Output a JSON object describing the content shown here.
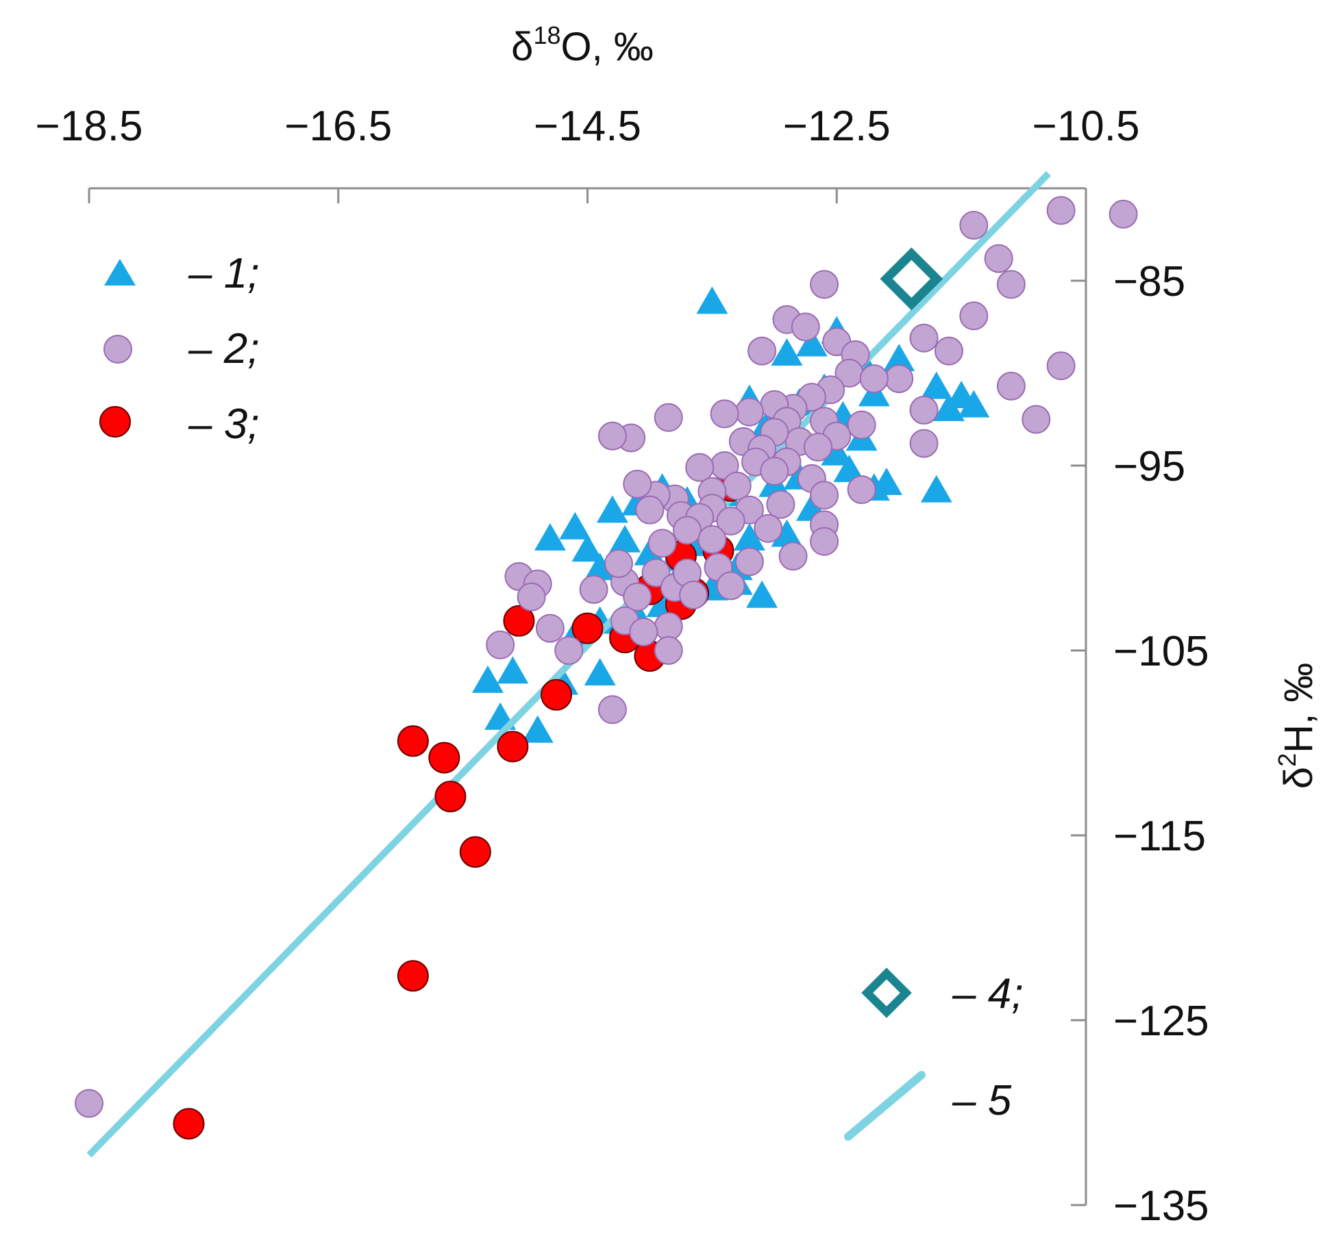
{
  "chart_data": {
    "type": "scatter",
    "xlabel_prefix": "δ",
    "xlabel_sup": "18",
    "xlabel_suffix": "O, ‰",
    "ylabel_prefix": "δ",
    "ylabel_sup": "2",
    "ylabel_suffix": "H, ‰",
    "xlim": [
      -18.5,
      -10.5
    ],
    "ylim": [
      -135,
      -80
    ],
    "x_ticks": [
      -18.5,
      -16.5,
      -14.5,
      -12.5,
      -10.5
    ],
    "x_tick_labels": [
      "−18.5",
      "−16.5",
      "−14.5",
      "−12.5",
      "−10.5"
    ],
    "y_ticks": [
      -85,
      -95,
      -105,
      -115,
      -125,
      -135
    ],
    "y_tick_labels": [
      "−85",
      "−95",
      "−105",
      "−115",
      "−125",
      "−135"
    ],
    "x_axis_position": "top",
    "y_axis_position": "right",
    "legend": [
      {
        "marker": "triangle",
        "label": "– 1;"
      },
      {
        "marker": "circle-purple",
        "label": "– 2;"
      },
      {
        "marker": "circle-red",
        "label": "– 3;"
      },
      {
        "marker": "diamond",
        "label": "– 4;"
      },
      {
        "marker": "line",
        "label": "– 5"
      }
    ],
    "colors": {
      "series1": "#1aa7e8",
      "series2": "#c2a5d2",
      "series2_edge": "#9b6bb3",
      "series3": "#ff0000",
      "series3_edge": "#6b0000",
      "series4": "#1a8590",
      "line": "#7ed3e2"
    },
    "series": [
      {
        "name": "1",
        "points": [
          [
            -13.5,
            -86.2
          ],
          [
            -12.5,
            -87.8
          ],
          [
            -12.7,
            -88.5
          ],
          [
            -12.3,
            -89.4
          ],
          [
            -12.0,
            -89.3
          ],
          [
            -12.9,
            -89.0
          ],
          [
            -11.7,
            -90.8
          ],
          [
            -11.5,
            -91.3
          ],
          [
            -11.4,
            -91.8
          ],
          [
            -12.2,
            -91.2
          ],
          [
            -12.6,
            -90.9
          ],
          [
            -13.2,
            -91.5
          ],
          [
            -13.0,
            -92.2
          ],
          [
            -12.8,
            -91.7
          ],
          [
            -12.45,
            -92.4
          ],
          [
            -13.1,
            -93.3
          ],
          [
            -12.3,
            -93.6
          ],
          [
            -12.85,
            -93.8
          ],
          [
            -12.5,
            -94.4
          ],
          [
            -12.1,
            -96.0
          ],
          [
            -11.7,
            -96.4
          ],
          [
            -12.4,
            -95.3
          ],
          [
            -12.8,
            -95.7
          ],
          [
            -13.0,
            -96.1
          ],
          [
            -13.4,
            -96.6
          ],
          [
            -13.7,
            -97.0
          ],
          [
            -13.9,
            -96.3
          ],
          [
            -14.1,
            -97.1
          ],
          [
            -14.3,
            -97.5
          ],
          [
            -14.6,
            -98.4
          ],
          [
            -14.5,
            -99.6
          ],
          [
            -14.2,
            -99.1
          ],
          [
            -14.0,
            -99.8
          ],
          [
            -13.6,
            -99.3
          ],
          [
            -13.2,
            -99.0
          ],
          [
            -12.9,
            -98.8
          ],
          [
            -14.8,
            -99.0
          ],
          [
            -14.4,
            -100.6
          ],
          [
            -13.8,
            -101.4
          ],
          [
            -13.5,
            -101.7
          ],
          [
            -13.1,
            -102.1
          ],
          [
            -13.3,
            -101.4
          ],
          [
            -13.9,
            -102.6
          ],
          [
            -14.1,
            -103.2
          ],
          [
            -14.4,
            -103.5
          ],
          [
            -14.2,
            -104.0
          ],
          [
            -14.6,
            -104.2
          ],
          [
            -15.1,
            -106.2
          ],
          [
            -15.3,
            -106.7
          ],
          [
            -14.7,
            -106.8
          ],
          [
            -14.4,
            -106.3
          ],
          [
            -15.2,
            -108.7
          ],
          [
            -14.9,
            -109.4
          ],
          [
            -12.2,
            -96.3
          ],
          [
            -11.6,
            -92.0
          ],
          [
            -13.8,
            -100.1
          ],
          [
            -13.3,
            -100.6
          ],
          [
            -12.7,
            -97.4
          ]
        ]
      },
      {
        "name": "2",
        "points": [
          [
            -10.7,
            -81.2
          ],
          [
            -10.2,
            -81.4
          ],
          [
            -11.4,
            -82.0
          ],
          [
            -11.2,
            -83.8
          ],
          [
            -11.1,
            -85.2
          ],
          [
            -12.6,
            -85.2
          ],
          [
            -11.4,
            -86.9
          ],
          [
            -12.9,
            -87.1
          ],
          [
            -12.75,
            -87.5
          ],
          [
            -13.1,
            -88.8
          ],
          [
            -12.5,
            -88.3
          ],
          [
            -12.35,
            -89.0
          ],
          [
            -11.8,
            -88.1
          ],
          [
            -11.6,
            -88.8
          ],
          [
            -10.7,
            -89.6
          ],
          [
            -12.0,
            -90.3
          ],
          [
            -12.4,
            -90.0
          ],
          [
            -12.55,
            -90.9
          ],
          [
            -12.2,
            -90.3
          ],
          [
            -11.1,
            -90.7
          ],
          [
            -12.7,
            -91.3
          ],
          [
            -12.85,
            -91.9
          ],
          [
            -13.0,
            -91.7
          ],
          [
            -13.2,
            -92.1
          ],
          [
            -12.9,
            -92.6
          ],
          [
            -13.4,
            -92.2
          ],
          [
            -12.6,
            -92.6
          ],
          [
            -11.8,
            -92.0
          ],
          [
            -10.9,
            -92.5
          ],
          [
            -12.5,
            -93.4
          ],
          [
            -12.8,
            -93.7
          ],
          [
            -13.0,
            -93.2
          ],
          [
            -13.25,
            -93.7
          ],
          [
            -12.3,
            -92.8
          ],
          [
            -13.1,
            -94.1
          ],
          [
            -12.65,
            -94.0
          ],
          [
            -12.9,
            -94.8
          ],
          [
            -13.15,
            -94.8
          ],
          [
            -13.4,
            -95.0
          ],
          [
            -13.6,
            -95.1
          ],
          [
            -12.7,
            -95.7
          ],
          [
            -13.0,
            -95.3
          ],
          [
            -13.3,
            -96.1
          ],
          [
            -13.5,
            -96.4
          ],
          [
            -13.8,
            -96.8
          ],
          [
            -13.95,
            -96.6
          ],
          [
            -14.0,
            -97.4
          ],
          [
            -13.75,
            -97.7
          ],
          [
            -13.5,
            -97.3
          ],
          [
            -13.2,
            -97.4
          ],
          [
            -12.95,
            -97.1
          ],
          [
            -12.6,
            -96.6
          ],
          [
            -12.3,
            -96.3
          ],
          [
            -11.8,
            -93.8
          ],
          [
            -14.15,
            -93.5
          ],
          [
            -14.3,
            -93.4
          ],
          [
            -13.85,
            -92.4
          ],
          [
            -14.1,
            -96.0
          ],
          [
            -13.6,
            -97.8
          ],
          [
            -13.35,
            -98.0
          ],
          [
            -13.05,
            -98.4
          ],
          [
            -12.6,
            -98.2
          ],
          [
            -13.7,
            -98.5
          ],
          [
            -13.9,
            -99.2
          ],
          [
            -13.5,
            -99.0
          ],
          [
            -12.6,
            -99.1
          ],
          [
            -12.85,
            -99.9
          ],
          [
            -13.2,
            -100.2
          ],
          [
            -13.45,
            -100.5
          ],
          [
            -13.95,
            -100.8
          ],
          [
            -14.2,
            -101.3
          ],
          [
            -14.25,
            -100.3
          ],
          [
            -13.8,
            -101.6
          ],
          [
            -13.7,
            -100.8
          ],
          [
            -13.65,
            -102.0
          ],
          [
            -13.35,
            -101.5
          ],
          [
            -14.45,
            -101.7
          ],
          [
            -14.1,
            -102.1
          ],
          [
            -15.05,
            -101.0
          ],
          [
            -14.9,
            -101.4
          ],
          [
            -14.95,
            -102.1
          ],
          [
            -14.2,
            -103.4
          ],
          [
            -13.85,
            -103.7
          ],
          [
            -14.05,
            -104.0
          ],
          [
            -14.8,
            -103.8
          ],
          [
            -15.2,
            -104.7
          ],
          [
            -14.65,
            -105.0
          ],
          [
            -13.85,
            -105.0
          ],
          [
            -14.3,
            -108.2
          ],
          [
            -18.5,
            -129.5
          ]
        ]
      },
      {
        "name": "3",
        "points": [
          [
            -17.7,
            -130.6
          ],
          [
            -15.9,
            -122.6
          ],
          [
            -15.4,
            -115.9
          ],
          [
            -15.6,
            -112.9
          ],
          [
            -15.65,
            -110.8
          ],
          [
            -15.9,
            -109.9
          ],
          [
            -15.1,
            -110.2
          ],
          [
            -14.75,
            -107.4
          ],
          [
            -15.05,
            -103.4
          ],
          [
            -14.5,
            -103.8
          ],
          [
            -14.2,
            -104.3
          ],
          [
            -14.0,
            -105.3
          ],
          [
            -14.0,
            -101.7
          ],
          [
            -13.75,
            -102.5
          ],
          [
            -13.65,
            -101.9
          ],
          [
            -13.75,
            -99.9
          ],
          [
            -13.45,
            -99.6
          ],
          [
            -13.35,
            -96.1
          ]
        ]
      },
      {
        "name": "4",
        "points": [
          [
            -11.9,
            -84.9
          ]
        ]
      },
      {
        "name": "5",
        "line": [
          [
            -18.5,
            -132.3
          ],
          [
            -10.8,
            -79.2
          ]
        ]
      }
    ]
  }
}
